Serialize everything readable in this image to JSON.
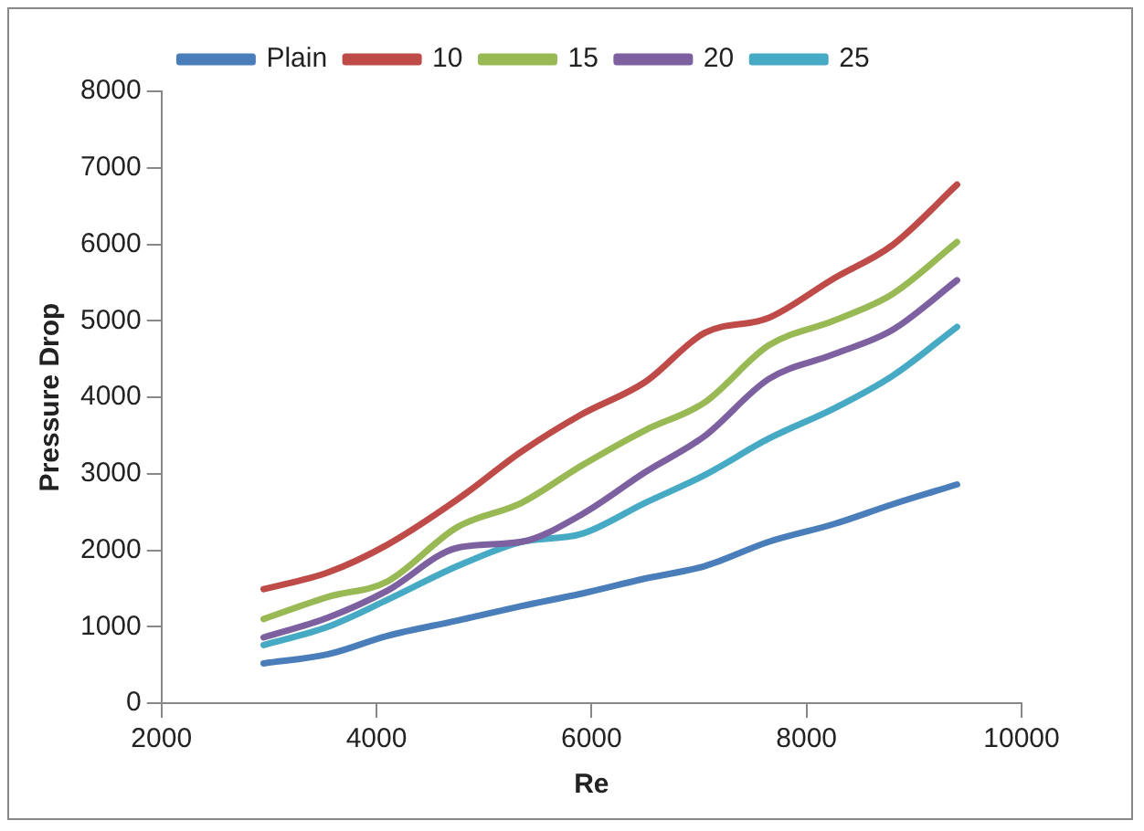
{
  "chart_data": {
    "type": "line",
    "xlabel": "Re",
    "ylabel": "Pressure Drop",
    "x": [
      2950,
      3550,
      4100,
      4750,
      5350,
      5900,
      6500,
      7050,
      7650,
      8250,
      8800,
      9400
    ],
    "series": [
      {
        "name": "Plain",
        "color": "#4a7ebb",
        "values": [
          520,
          640,
          880,
          1080,
          1270,
          1430,
          1630,
          1790,
          2110,
          2340,
          2600,
          2860
        ]
      },
      {
        "name": "10",
        "color": "#be4b48",
        "values": [
          1490,
          1710,
          2070,
          2660,
          3290,
          3770,
          4200,
          4840,
          5040,
          5550,
          5990,
          6780
        ]
      },
      {
        "name": "15",
        "color": "#98b954",
        "values": [
          1100,
          1390,
          1590,
          2300,
          2620,
          3100,
          3570,
          3930,
          4680,
          5000,
          5350,
          6030
        ]
      },
      {
        "name": "20",
        "color": "#7d60a0",
        "values": [
          860,
          1120,
          1470,
          2030,
          2110,
          2460,
          3020,
          3490,
          4240,
          4560,
          4880,
          5530
        ]
      },
      {
        "name": "25",
        "color": "#46aac5",
        "values": [
          760,
          1000,
          1350,
          1790,
          2110,
          2210,
          2620,
          2980,
          3460,
          3850,
          4280,
          4920
        ]
      }
    ],
    "xlim": [
      2000,
      10000
    ],
    "xticks": [
      2000,
      4000,
      6000,
      8000,
      10000
    ],
    "ylim": [
      0,
      8000
    ],
    "yticks": [
      0,
      1000,
      2000,
      3000,
      4000,
      5000,
      6000,
      7000,
      8000
    ],
    "grid": false,
    "legend": "top",
    "marker": "none",
    "line_style": "solid"
  }
}
